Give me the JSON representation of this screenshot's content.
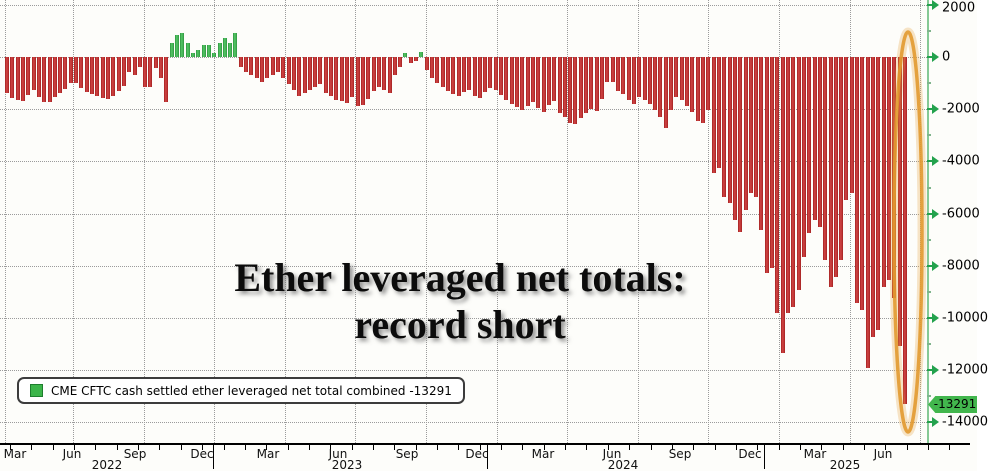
{
  "title": {
    "line1": "Ether leveraged net totals:",
    "line2": "record short"
  },
  "legend": {
    "text": "CME CFTC cash settled ether leveraged net total combined  -13291",
    "swatch_color": "#3cb54a"
  },
  "y_axis": {
    "tick_labels": [
      "2000",
      "0",
      "-2000",
      "-4000",
      "-6000",
      "-8000",
      "-10000",
      "-12000",
      "-14000"
    ],
    "last_value_tag": "-13291",
    "tag_color": "#42b64d"
  },
  "x_axis": {
    "months": [
      {
        "label": "Mar",
        "x": 15
      },
      {
        "label": "Jun",
        "x": 72
      },
      {
        "label": "Sep",
        "x": 135
      },
      {
        "label": "Dec",
        "x": 202
      },
      {
        "label": "Mar",
        "x": 268
      },
      {
        "label": "Jun",
        "x": 338
      },
      {
        "label": "Sep",
        "x": 407
      },
      {
        "label": "Dec",
        "x": 477
      },
      {
        "label": "Mar",
        "x": 543
      },
      {
        "label": "Jun",
        "x": 612
      },
      {
        "label": "Sep",
        "x": 680
      },
      {
        "label": "Dec",
        "x": 750
      },
      {
        "label": "Mar",
        "x": 815
      },
      {
        "label": "Jun",
        "x": 883
      }
    ],
    "years": [
      {
        "label": "2022",
        "x": 107
      },
      {
        "label": "2023",
        "x": 347
      },
      {
        "label": "2024",
        "x": 623
      },
      {
        "label": "2025",
        "x": 845
      }
    ],
    "year_separators_x": [
      213,
      487,
      764
    ]
  },
  "highlight": {
    "shape": "ellipse",
    "color": "#e6a23c"
  },
  "chart_data": {
    "type": "bar",
    "title": "Ether leveraged net totals: record short",
    "series_name": "CME CFTC cash settled ether leveraged net total combined",
    "frequency": "weekly",
    "x_start": "Mar 2022",
    "x_end": "Jul 2025",
    "ylim": [
      -14000,
      2000
    ],
    "y_ticks": [
      2000,
      0,
      -2000,
      -4000,
      -6000,
      -8000,
      -10000,
      -12000,
      -14000
    ],
    "grid": "dotted",
    "legend_position": "bottom-left",
    "bar_color_negative": "#c03030",
    "bar_color_positive": "#3cb54a",
    "last_value": -13291,
    "values": [
      -1380,
      -1570,
      -1650,
      -1680,
      -1460,
      -1260,
      -1530,
      -1740,
      -1720,
      -1530,
      -1380,
      -1230,
      -1000,
      -980,
      -1190,
      -1340,
      -1420,
      -1500,
      -1560,
      -1620,
      -1480,
      -1300,
      -1120,
      -570,
      -690,
      -380,
      -1140,
      -1150,
      -420,
      -800,
      -1720,
      540,
      840,
      920,
      540,
      150,
      270,
      460,
      460,
      150,
      540,
      730,
      540,
      920,
      -400,
      -570,
      -690,
      -820,
      -950,
      -820,
      -700,
      -580,
      -810,
      -1040,
      -1270,
      -1500,
      -1380,
      -1270,
      -1150,
      -1040,
      -1380,
      -1490,
      -1650,
      -1700,
      -1760,
      -1540,
      -1880,
      -1820,
      -1600,
      -1300,
      -1150,
      -1270,
      -1380,
      -690,
      -400,
      150,
      -230,
      -150,
      180,
      -480,
      -800,
      -1000,
      -1150,
      -1300,
      -1420,
      -1500,
      -1340,
      -1260,
      -1490,
      -1570,
      -1340,
      -1190,
      -1270,
      -1460,
      -1650,
      -1800,
      -1920,
      -2030,
      -1880,
      -1720,
      -1950,
      -2110,
      -1840,
      -1690,
      -2150,
      -2300,
      -2530,
      -2570,
      -2340,
      -2150,
      -1990,
      -2050,
      -1600,
      -950,
      -960,
      -1300,
      -1420,
      -1650,
      -1800,
      -1530,
      -1650,
      -1800,
      -2030,
      -2300,
      -2720,
      -2030,
      -1530,
      -1650,
      -1880,
      -2100,
      -2460,
      -2530,
      -2030,
      -4440,
      -4250,
      -5360,
      -5590,
      -6240,
      -6700,
      -5860,
      -5210,
      -5360,
      -6620,
      -8270,
      -8080,
      -9800,
      -11330,
      -9800,
      -9570,
      -8920,
      -7660,
      -6740,
      -6240,
      -6510,
      -7770,
      -8800,
      -8420,
      -7770,
      -5480,
      -5210,
      -9420,
      -9690,
      -11900,
      -10720,
      -10460,
      -8800,
      -8540,
      -9230,
      -11070,
      -13291
    ]
  }
}
